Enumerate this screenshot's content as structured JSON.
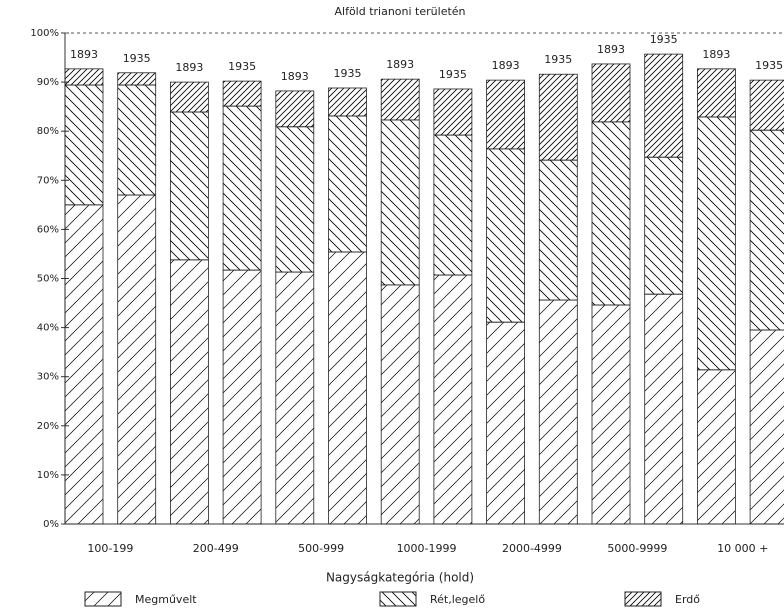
{
  "chart_data": {
    "type": "stacked_bar",
    "title": "Alföld trianoni területén",
    "x_label": "Nagyságkategória (hold)",
    "categories": [
      "1893",
      "1935",
      "1893",
      "1935",
      "1893",
      "1935",
      "1893",
      "1935",
      "1893",
      "1935",
      "1893",
      "1935",
      "1893",
      "1935"
    ],
    "groups": [
      "100-199",
      "200-499",
      "500-999",
      "1000-1999",
      "2000-4999",
      "5000-9999",
      "10 000 +"
    ],
    "series": [
      {
        "name": "Megművelt",
        "color": "#000000",
        "values": [
          65,
          67,
          53.8,
          51.7,
          51.3,
          55.4,
          48.7,
          50.7,
          41.1,
          45.6,
          44.6,
          46.8,
          31.4,
          39.5
        ]
      },
      {
        "name": "Rét,legelő",
        "color": "#000000",
        "values": [
          24.4,
          22.4,
          30.1,
          33.4,
          29.6,
          27.7,
          33.6,
          28.5,
          35.3,
          28.5,
          37.3,
          27.9,
          51.5,
          40.7
        ]
      },
      {
        "name": "Erdő",
        "color": "#000000",
        "values": [
          3.3,
          2.5,
          6.1,
          5.1,
          7.3,
          5.7,
          8.3,
          9.4,
          14.0,
          17.5,
          11.8,
          21.0,
          9.8,
          10.2
        ]
      }
    ],
    "ylim": [
      0,
      100
    ],
    "yticks": [
      {
        "value": 0,
        "label": "0%"
      },
      {
        "value": 10,
        "label": "10%"
      },
      {
        "value": 20,
        "label": "20%"
      },
      {
        "value": 30,
        "label": "30%"
      },
      {
        "value": 40,
        "label": "40%"
      },
      {
        "value": 50,
        "label": "50%"
      },
      {
        "value": 60,
        "label": "60%"
      },
      {
        "value": 70,
        "label": "70%"
      },
      {
        "value": 80,
        "label": "80%"
      },
      {
        "value": 90,
        "label": "90%"
      },
      {
        "value": 100,
        "label": "100%"
      }
    ],
    "legend": "bottom"
  }
}
